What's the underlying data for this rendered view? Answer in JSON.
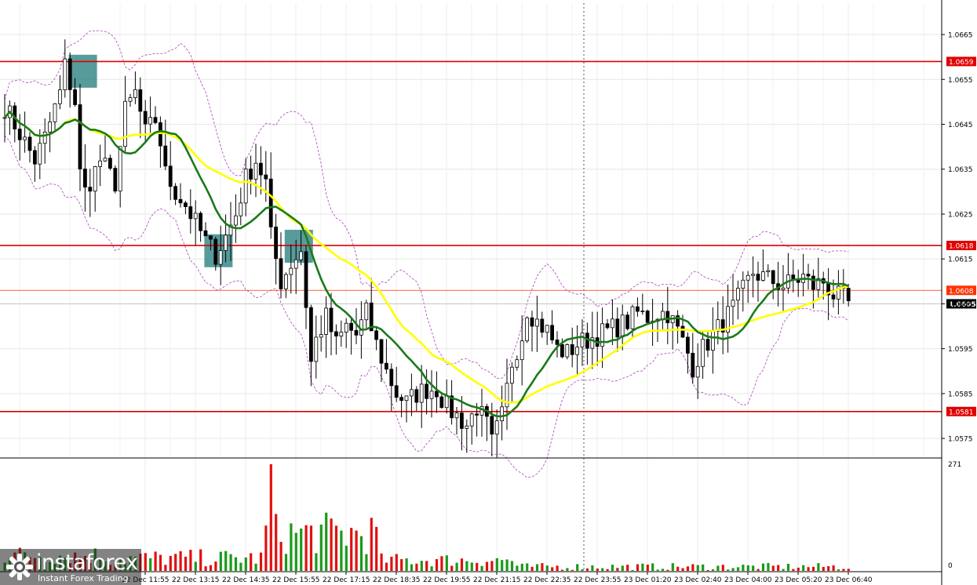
{
  "chart_data": {
    "type": "candlestick",
    "title": "",
    "y_range": [
      1.0571,
      1.0672
    ],
    "y_ticks": [
      "1.0665",
      "1.0655",
      "1.0645",
      "1.0635",
      "1.0625",
      "1.0615",
      "1.0605",
      "1.0595",
      "1.0585",
      "1.0575"
    ],
    "x_ticks": [
      "22 Dec 11:55",
      "22 Dec 13:15",
      "22 Dec 14:35",
      "22 Dec 15:55",
      "22 Dec 17:15",
      "22 Dec 18:35",
      "22 Dec 19:55",
      "22 Dec 21:15",
      "22 Dec 22:35",
      "22 Dec 23:55",
      "23 Dec 01:20",
      "23 Dec 02:40",
      "23 Dec 04:00",
      "23 Dec 05:20",
      "23 Dec 06:40"
    ],
    "grid": true,
    "levels": [
      {
        "value": 1.0659,
        "label": "1.0659",
        "color": "#e00000"
      },
      {
        "value": 1.0618,
        "label": "1.0618",
        "color": "#e00000"
      },
      {
        "value": 1.0581,
        "label": "1.0581",
        "color": "#e00000"
      }
    ],
    "current_price": {
      "value": 1.0605,
      "label": "1.0605"
    },
    "bid_line": {
      "value": 1.0608,
      "label": "1.0608",
      "color": "#ff3300"
    },
    "price_path": [
      [
        0,
        1.0649
      ],
      [
        4,
        1.0641
      ],
      [
        6,
        1.0637
      ],
      [
        8,
        1.0642
      ],
      [
        11,
        1.0652
      ],
      [
        12,
        1.0658
      ],
      [
        14,
        1.065
      ],
      [
        15,
        1.0634
      ],
      [
        16,
        1.063
      ],
      [
        19,
        1.0637
      ],
      [
        22,
        1.0632
      ],
      [
        24,
        1.0648
      ],
      [
        26,
        1.0652
      ],
      [
        28,
        1.0643
      ],
      [
        30,
        1.0646
      ],
      [
        31,
        1.0641
      ],
      [
        32,
        1.0634
      ],
      [
        34,
        1.063
      ],
      [
        36,
        1.0627
      ],
      [
        38,
        1.0623
      ],
      [
        40,
        1.0619
      ],
      [
        42,
        1.0616
      ],
      [
        44,
        1.062
      ],
      [
        46,
        1.0625
      ],
      [
        48,
        1.0633
      ],
      [
        50,
        1.0637
      ],
      [
        52,
        1.0632
      ],
      [
        53,
        1.062
      ],
      [
        55,
        1.061
      ],
      [
        57,
        1.0614
      ],
      [
        59,
        1.0617
      ],
      [
        60,
        1.0605
      ],
      [
        61,
        1.0592
      ],
      [
        62,
        1.0597
      ],
      [
        64,
        1.0602
      ],
      [
        66,
        1.0596
      ],
      [
        68,
        1.06
      ],
      [
        70,
        1.0598
      ],
      [
        72,
        1.0603
      ],
      [
        74,
        1.0596
      ],
      [
        76,
        1.059
      ],
      [
        78,
        1.0585
      ],
      [
        80,
        1.0583
      ],
      [
        82,
        1.0585
      ],
      [
        84,
        1.0586
      ],
      [
        86,
        1.0586
      ],
      [
        88,
        1.0582
      ],
      [
        90,
        1.058
      ],
      [
        92,
        1.0578
      ],
      [
        94,
        1.0582
      ],
      [
        96,
        1.0578
      ],
      [
        97,
        1.0574
      ],
      [
        99,
        1.058
      ],
      [
        101,
        1.0592
      ],
      [
        103,
        1.0598
      ],
      [
        104,
        1.0604
      ],
      [
        106,
        1.0601
      ],
      [
        108,
        1.0599
      ],
      [
        110,
        1.0595
      ],
      [
        112,
        1.0594
      ],
      [
        114,
        1.0596
      ],
      [
        116,
        1.0597
      ],
      [
        118,
        1.0598
      ],
      [
        120,
        1.0599
      ],
      [
        122,
        1.06
      ],
      [
        124,
        1.0601
      ],
      [
        126,
        1.0603
      ],
      [
        128,
        1.0602
      ],
      [
        130,
        1.0603
      ],
      [
        132,
        1.0603
      ],
      [
        134,
        1.0599
      ],
      [
        136,
        1.0594
      ],
      [
        137,
        1.0591
      ],
      [
        139,
        1.0595
      ],
      [
        141,
        1.0598
      ],
      [
        143,
        1.0601
      ],
      [
        145,
        1.0604
      ],
      [
        147,
        1.0608
      ],
      [
        149,
        1.0612
      ],
      [
        151,
        1.0611
      ],
      [
        153,
        1.061
      ],
      [
        155,
        1.0609
      ],
      [
        157,
        1.061
      ],
      [
        159,
        1.0611
      ],
      [
        161,
        1.0609
      ],
      [
        163,
        1.061
      ],
      [
        165,
        1.0607
      ],
      [
        167,
        1.0606
      ],
      [
        168,
        1.0605
      ]
    ],
    "sma_fast_color": "#1a7a1a",
    "sma_slow_color": "#ffff00",
    "bands_color": "#b040c0",
    "highlight_color": "#3a8a8a",
    "highlights": [
      {
        "bar": 14,
        "value": 1.0657
      },
      {
        "bar": 41,
        "value": 1.0617
      },
      {
        "bar": 57,
        "value": 1.0618
      }
    ],
    "volume_max_label": "271",
    "volume_min_label": "0",
    "volume_max": 271
  },
  "watermark": {
    "brand": "instaforex",
    "tagline": "Instant Forex Trading"
  }
}
